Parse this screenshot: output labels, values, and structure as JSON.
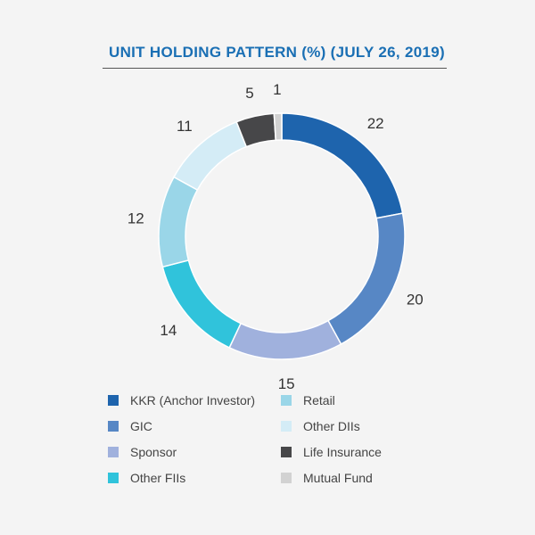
{
  "chart_data": {
    "type": "pie",
    "title": "UNIT HOLDING PATTERN (%) (JULY 26, 2019)",
    "slices": [
      {
        "name": "KKR (Anchor Investor)",
        "value": 22,
        "color": "#1e64ad"
      },
      {
        "name": "GIC",
        "value": 20,
        "color": "#5787c5"
      },
      {
        "name": "Sponsor",
        "value": 15,
        "color": "#a0b1dd"
      },
      {
        "name": "Other FIIs",
        "value": 14,
        "color": "#30c3db"
      },
      {
        "name": "Retail",
        "value": 12,
        "color": "#9ad6e8"
      },
      {
        "name": "Other DIIs",
        "value": 11,
        "color": "#d4ecf6"
      },
      {
        "name": "Life Insurance",
        "value": 5,
        "color": "#474749"
      },
      {
        "name": "Mutual Fund",
        "value": 1,
        "color": "#d2d2d2"
      }
    ]
  }
}
